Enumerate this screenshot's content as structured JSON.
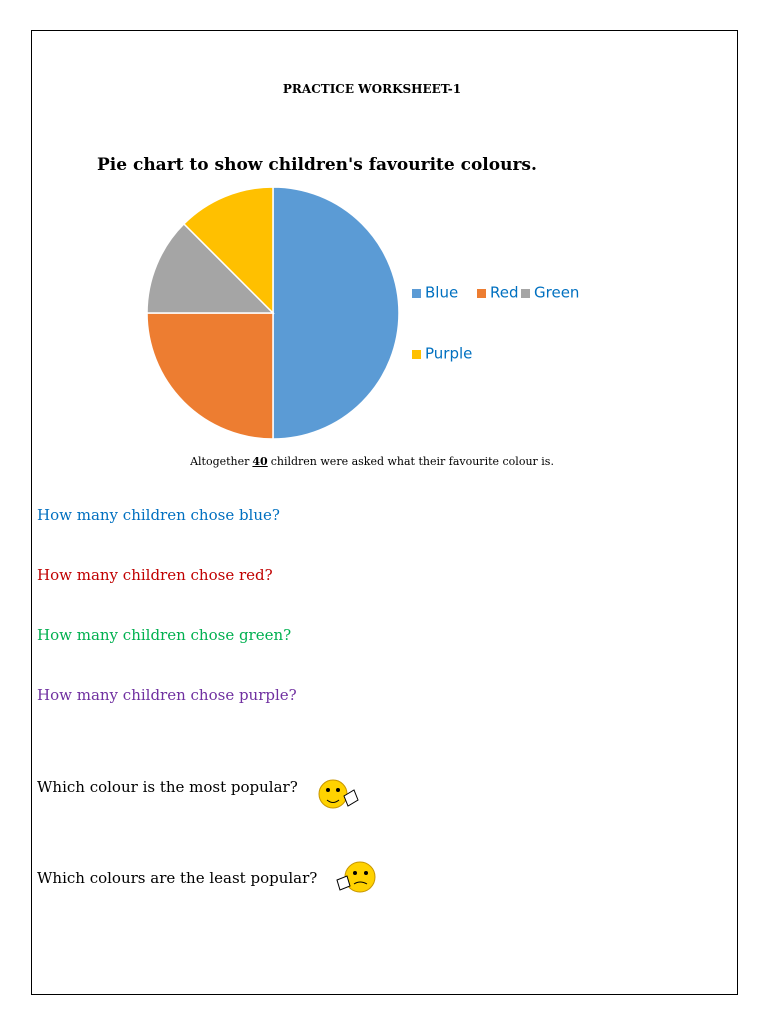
{
  "header": {
    "title": "PRACTICE WORKSHEET-1"
  },
  "chart_data": {
    "type": "pie",
    "title": "Pie chart to show children's favourite colours.",
    "categories": [
      "Blue",
      "Red",
      "Green",
      "Purple"
    ],
    "values": [
      50,
      25,
      12.5,
      12.5
    ],
    "colors": [
      "#5b9bd5",
      "#ed7d31",
      "#a5a5a5",
      "#ffc000"
    ]
  },
  "intro": {
    "before": "Altogether",
    "total": 40,
    "after": "children were asked what their favourite colour is."
  },
  "questions": [
    "How many children chose blue?",
    "How many children chose red?",
    "How many children chose green?",
    "How many children chose purple?",
    "Which colour is the most popular?",
    "Which colours are the least popular?"
  ]
}
